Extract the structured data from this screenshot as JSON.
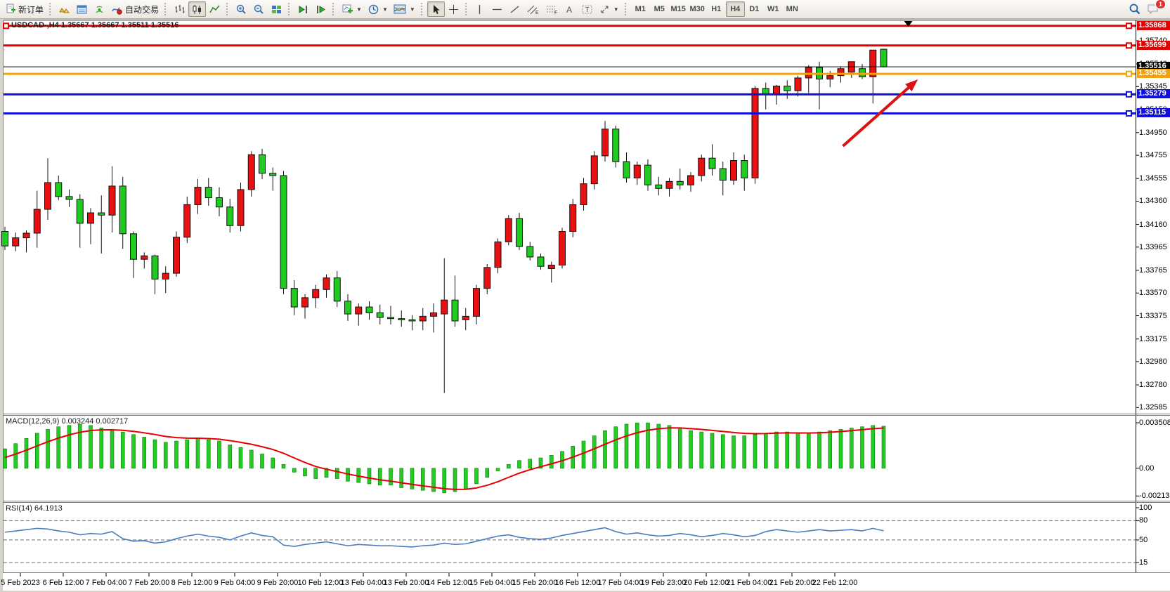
{
  "toolbar": {
    "new_order": "新订单",
    "autotrading": "自动交易",
    "timeframes": [
      "M1",
      "M5",
      "M15",
      "M30",
      "H1",
      "H4",
      "D1",
      "W1",
      "MN"
    ],
    "active_timeframe": "H4",
    "notification_count": "1",
    "icon_names": [
      "new-order-icon",
      "gold-icon",
      "market-watch-icon",
      "signal-icon",
      "autotrading-icon",
      "bar-chart-icon",
      "candlestick-chart-icon",
      "line-chart-icon",
      "zoom-in-icon",
      "zoom-out-icon",
      "tile-windows-icon",
      "chart-shift-icon",
      "chart-autoscroll-icon",
      "new-chart-icon",
      "period-icon",
      "template-icon",
      "cursor-icon",
      "crosshair-icon",
      "vertical-line-icon",
      "horizontal-line-icon",
      "trendline-icon",
      "channel-icon",
      "fibonacci-icon",
      "text-icon",
      "text-label-icon",
      "arrows-icon",
      "search-icon",
      "chat-icon"
    ]
  },
  "colors": {
    "bull_candle": "#e81010",
    "bear_candle": "#1fcb1f",
    "wick": "#111111",
    "resistance_line": "#e60000",
    "support_line": "#1010dd",
    "pivot_line": "#f2a20d",
    "bid_line": "#000000",
    "macd_bar": "#22cc22",
    "macd_signal": "#e60000",
    "rsi_line": "#4a7dbf",
    "arrow": "#dd1111"
  },
  "chart_data": {
    "type": "candlestick",
    "symbol": "USDCAD-",
    "timeframe": "H4",
    "title": "USDCAD-,H4 1.35667 1.35667 1.35511 1.35516",
    "ohlc": {
      "open": "1.35667",
      "high": "1.35667",
      "low": "1.35511",
      "close": "1.35516"
    },
    "ylim": [
      1.3254,
      1.3592
    ],
    "price_ticks": [
      "1.35740",
      "1.35540",
      "1.35345",
      "1.35150",
      "1.34950",
      "1.34755",
      "1.34555",
      "1.34360",
      "1.34160",
      "1.33965",
      "1.33765",
      "1.33570",
      "1.33375",
      "1.33175",
      "1.32980",
      "1.32780",
      "1.32585"
    ],
    "time_labels": [
      "5 Feb 2023",
      "6 Feb 12:00",
      "7 Feb 04:00",
      "7 Feb 20:00",
      "8 Feb 12:00",
      "9 Feb 04:00",
      "9 Feb 20:00",
      "10 Feb 12:00",
      "13 Feb 04:00",
      "13 Feb 20:00",
      "14 Feb 12:00",
      "15 Feb 04:00",
      "15 Feb 20:00",
      "16 Feb 12:00",
      "17 Feb 04:00",
      "19 Feb 23:00",
      "20 Feb 12:00",
      "21 Feb 04:00",
      "21 Feb 20:00",
      "22 Feb 12:00"
    ],
    "hlines": [
      {
        "price": 1.35868,
        "color": "#e60000",
        "width": 3,
        "badge": "1.35868",
        "badge_bg": "#e60000"
      },
      {
        "price": 1.35699,
        "color": "#e60000",
        "width": 3,
        "badge": "1.35699",
        "badge_bg": "#e60000"
      },
      {
        "price": 1.35516,
        "color": "#000000",
        "width": 1,
        "badge": "1.35516",
        "badge_bg": "#000000",
        "role": "bid"
      },
      {
        "price": 1.35455,
        "color": "#f2a20d",
        "width": 3,
        "badge": "1.35455",
        "badge_bg": "#f2a20d"
      },
      {
        "price": 1.35279,
        "color": "#1010dd",
        "width": 3,
        "badge": "1.35279",
        "badge_bg": "#1010dd"
      },
      {
        "price": 1.35115,
        "color": "#1010dd",
        "width": 3,
        "badge": "1.35115",
        "badge_bg": "#1010dd"
      }
    ],
    "candles": [
      [
        1.341,
        1.3414,
        1.3394,
        1.33975
      ],
      [
        1.33975,
        1.3409,
        1.3393,
        1.34045
      ],
      [
        1.34045,
        1.3411,
        1.3392,
        1.34085
      ],
      [
        1.34085,
        1.3445,
        1.3396,
        1.3429
      ],
      [
        1.3429,
        1.3473,
        1.342,
        1.3452
      ],
      [
        1.3452,
        1.3458,
        1.3437,
        1.344
      ],
      [
        1.344,
        1.3446,
        1.3431,
        1.34375
      ],
      [
        1.34375,
        1.3442,
        1.3396,
        1.3417
      ],
      [
        1.3417,
        1.343,
        1.3399,
        1.3426
      ],
      [
        1.3426,
        1.3441,
        1.3391,
        1.3424
      ],
      [
        1.3424,
        1.3466,
        1.3409,
        1.3449
      ],
      [
        1.3449,
        1.3457,
        1.3395,
        1.3408
      ],
      [
        1.3408,
        1.341,
        1.337,
        1.3386
      ],
      [
        1.3386,
        1.3392,
        1.3378,
        1.3389
      ],
      [
        1.3389,
        1.339,
        1.3356,
        1.3369
      ],
      [
        1.3369,
        1.338,
        1.3357,
        1.3374
      ],
      [
        1.3374,
        1.341,
        1.3371,
        1.3405
      ],
      [
        1.3405,
        1.344,
        1.34,
        1.3433
      ],
      [
        1.3433,
        1.3455,
        1.3425,
        1.3448
      ],
      [
        1.3448,
        1.3456,
        1.3432,
        1.3439
      ],
      [
        1.3439,
        1.3448,
        1.3423,
        1.3431
      ],
      [
        1.3431,
        1.3438,
        1.3409,
        1.3415
      ],
      [
        1.3415,
        1.3452,
        1.341,
        1.3446
      ],
      [
        1.3446,
        1.3479,
        1.344,
        1.3476
      ],
      [
        1.3476,
        1.3481,
        1.3455,
        1.346
      ],
      [
        1.346,
        1.3465,
        1.3445,
        1.3458
      ],
      [
        1.3458,
        1.3462,
        1.3356,
        1.3361
      ],
      [
        1.3361,
        1.3368,
        1.3338,
        1.3345
      ],
      [
        1.3345,
        1.3356,
        1.3335,
        1.3353
      ],
      [
        1.3353,
        1.3364,
        1.3344,
        1.336
      ],
      [
        1.336,
        1.3373,
        1.3353,
        1.337
      ],
      [
        1.337,
        1.3376,
        1.3345,
        1.335
      ],
      [
        1.335,
        1.3356,
        1.3333,
        1.3339
      ],
      [
        1.3339,
        1.3348,
        1.3329,
        1.3345
      ],
      [
        1.3345,
        1.335,
        1.3334,
        1.334
      ],
      [
        1.334,
        1.3347,
        1.333,
        1.3336
      ],
      [
        1.3336,
        1.3346,
        1.333,
        1.3335
      ],
      [
        1.3335,
        1.3342,
        1.3328,
        1.3334
      ],
      [
        1.3334,
        1.3338,
        1.3325,
        1.3333
      ],
      [
        1.3333,
        1.3344,
        1.3325,
        1.3337
      ],
      [
        1.3337,
        1.3348,
        1.3323,
        1.334
      ],
      [
        1.3339,
        1.3387,
        1.3271,
        1.3351
      ],
      [
        1.3351,
        1.3372,
        1.3328,
        1.3333
      ],
      [
        1.3334,
        1.3344,
        1.3325,
        1.3337
      ],
      [
        1.3337,
        1.3364,
        1.333,
        1.3361
      ],
      [
        1.3361,
        1.3382,
        1.3356,
        1.3379
      ],
      [
        1.3379,
        1.3404,
        1.3374,
        1.3401
      ],
      [
        1.3401,
        1.3424,
        1.3398,
        1.3421
      ],
      [
        1.3421,
        1.3426,
        1.3394,
        1.3397
      ],
      [
        1.3397,
        1.3401,
        1.3385,
        1.3388
      ],
      [
        1.3388,
        1.3391,
        1.3377,
        1.338
      ],
      [
        1.3378,
        1.3384,
        1.3366,
        1.3381
      ],
      [
        1.3381,
        1.3413,
        1.3378,
        1.341
      ],
      [
        1.341,
        1.3438,
        1.3405,
        1.3433
      ],
      [
        1.3433,
        1.3456,
        1.3428,
        1.3451
      ],
      [
        1.3451,
        1.3479,
        1.3446,
        1.3475
      ],
      [
        1.3475,
        1.3505,
        1.347,
        1.3498
      ],
      [
        1.3498,
        1.3501,
        1.3465,
        1.347
      ],
      [
        1.347,
        1.3478,
        1.3452,
        1.3456
      ],
      [
        1.3456,
        1.347,
        1.345,
        1.3467
      ],
      [
        1.3467,
        1.3472,
        1.3445,
        1.345
      ],
      [
        1.345,
        1.3457,
        1.3441,
        1.3447
      ],
      [
        1.3447,
        1.3456,
        1.344,
        1.3453
      ],
      [
        1.3453,
        1.3464,
        1.3446,
        1.345
      ],
      [
        1.345,
        1.3461,
        1.3444,
        1.3458
      ],
      [
        1.3458,
        1.3476,
        1.3453,
        1.3473
      ],
      [
        1.3473,
        1.3485,
        1.3458,
        1.3464
      ],
      [
        1.3464,
        1.347,
        1.3441,
        1.3454
      ],
      [
        1.3454,
        1.3478,
        1.345,
        1.3471
      ],
      [
        1.3471,
        1.3476,
        1.3445,
        1.3456
      ],
      [
        1.3456,
        1.3535,
        1.3451,
        1.3533
      ],
      [
        1.3533,
        1.3538,
        1.3515,
        1.3528
      ],
      [
        1.3528,
        1.3536,
        1.3519,
        1.3535
      ],
      [
        1.3535,
        1.354,
        1.3524,
        1.3531
      ],
      [
        1.3531,
        1.3544,
        1.3526,
        1.3542
      ],
      [
        1.3542,
        1.3553,
        1.3529,
        1.3551
      ],
      [
        1.3551,
        1.3556,
        1.3515,
        1.3541
      ],
      [
        1.3541,
        1.3548,
        1.3534,
        1.3544
      ],
      [
        1.3544,
        1.3552,
        1.3538,
        1.355
      ],
      [
        1.3547,
        1.3556,
        1.3542,
        1.3556
      ],
      [
        1.355,
        1.3554,
        1.3541,
        1.3543
      ],
      [
        1.3543,
        1.3566,
        1.352,
        1.3566
      ],
      [
        1.35667,
        1.35667,
        1.35511,
        1.35516
      ]
    ],
    "indicators": {
      "macd": {
        "label": "MACD(12,26,9)",
        "current": "0.003244",
        "signal_current": "0.002717",
        "axis_ticks": [
          "0.003508",
          "0.00",
          "-0.002138"
        ],
        "values": [
          0.0015,
          0.0019,
          0.0023,
          0.0027,
          0.003,
          0.0032,
          0.0033,
          0.0034,
          0.0033,
          0.0031,
          0.003,
          0.0028,
          0.0026,
          0.0024,
          0.0022,
          0.002,
          0.0021,
          0.0022,
          0.0023,
          0.0022,
          0.0021,
          0.0018,
          0.0016,
          0.0014,
          0.0011,
          0.0008,
          0.0003,
          -0.0003,
          -0.0006,
          -0.0008,
          -0.0007,
          -0.0008,
          -0.001,
          -0.0011,
          -0.0012,
          -0.0013,
          -0.0013,
          -0.0015,
          -0.0016,
          -0.0017,
          -0.0018,
          -0.0019,
          -0.0018,
          -0.0016,
          -0.0012,
          -0.0007,
          -0.0002,
          0.0003,
          0.0006,
          0.0007,
          0.0008,
          0.001,
          0.0013,
          0.0017,
          0.0021,
          0.0025,
          0.0029,
          0.0032,
          0.0034,
          0.0035,
          0.0035,
          0.0034,
          0.0033,
          0.0031,
          0.0029,
          0.0028,
          0.0027,
          0.0026,
          0.0025,
          0.0025,
          0.0026,
          0.0027,
          0.0028,
          0.0028,
          0.0027,
          0.0027,
          0.0028,
          0.0029,
          0.003,
          0.0031,
          0.0032,
          0.0033,
          0.003244
        ]
      },
      "rsi": {
        "label": "RSI(14)",
        "current": "64.1913",
        "axis_ticks": [
          "100",
          "80",
          "50",
          "15"
        ],
        "levels": [
          80,
          50,
          15
        ],
        "values": [
          62,
          64,
          66,
          68,
          67,
          64,
          62,
          58,
          60,
          59,
          63,
          52,
          48,
          49,
          45,
          47,
          52,
          56,
          59,
          56,
          54,
          50,
          56,
          61,
          57,
          55,
          42,
          40,
          43,
          45,
          47,
          44,
          41,
          43,
          42,
          41,
          41,
          40,
          39,
          41,
          42,
          45,
          43,
          44,
          48,
          52,
          56,
          58,
          54,
          52,
          51,
          53,
          57,
          60,
          63,
          66,
          69,
          63,
          59,
          61,
          58,
          56,
          57,
          60,
          58,
          55,
          57,
          60,
          58,
          55,
          57,
          63,
          66,
          64,
          62,
          64,
          66,
          64,
          65,
          66,
          64,
          68,
          64.19
        ]
      }
    },
    "annotations": {
      "trend_arrow": {
        "from_bar": 78.2,
        "from_price": 1.34834,
        "to_bar": 85.2,
        "to_price": 1.35408,
        "color": "#dd1111"
      },
      "top_triangle_marker": {
        "bar": 84.3
      },
      "line_anchor_square": {
        "price": 1.35868
      }
    }
  }
}
